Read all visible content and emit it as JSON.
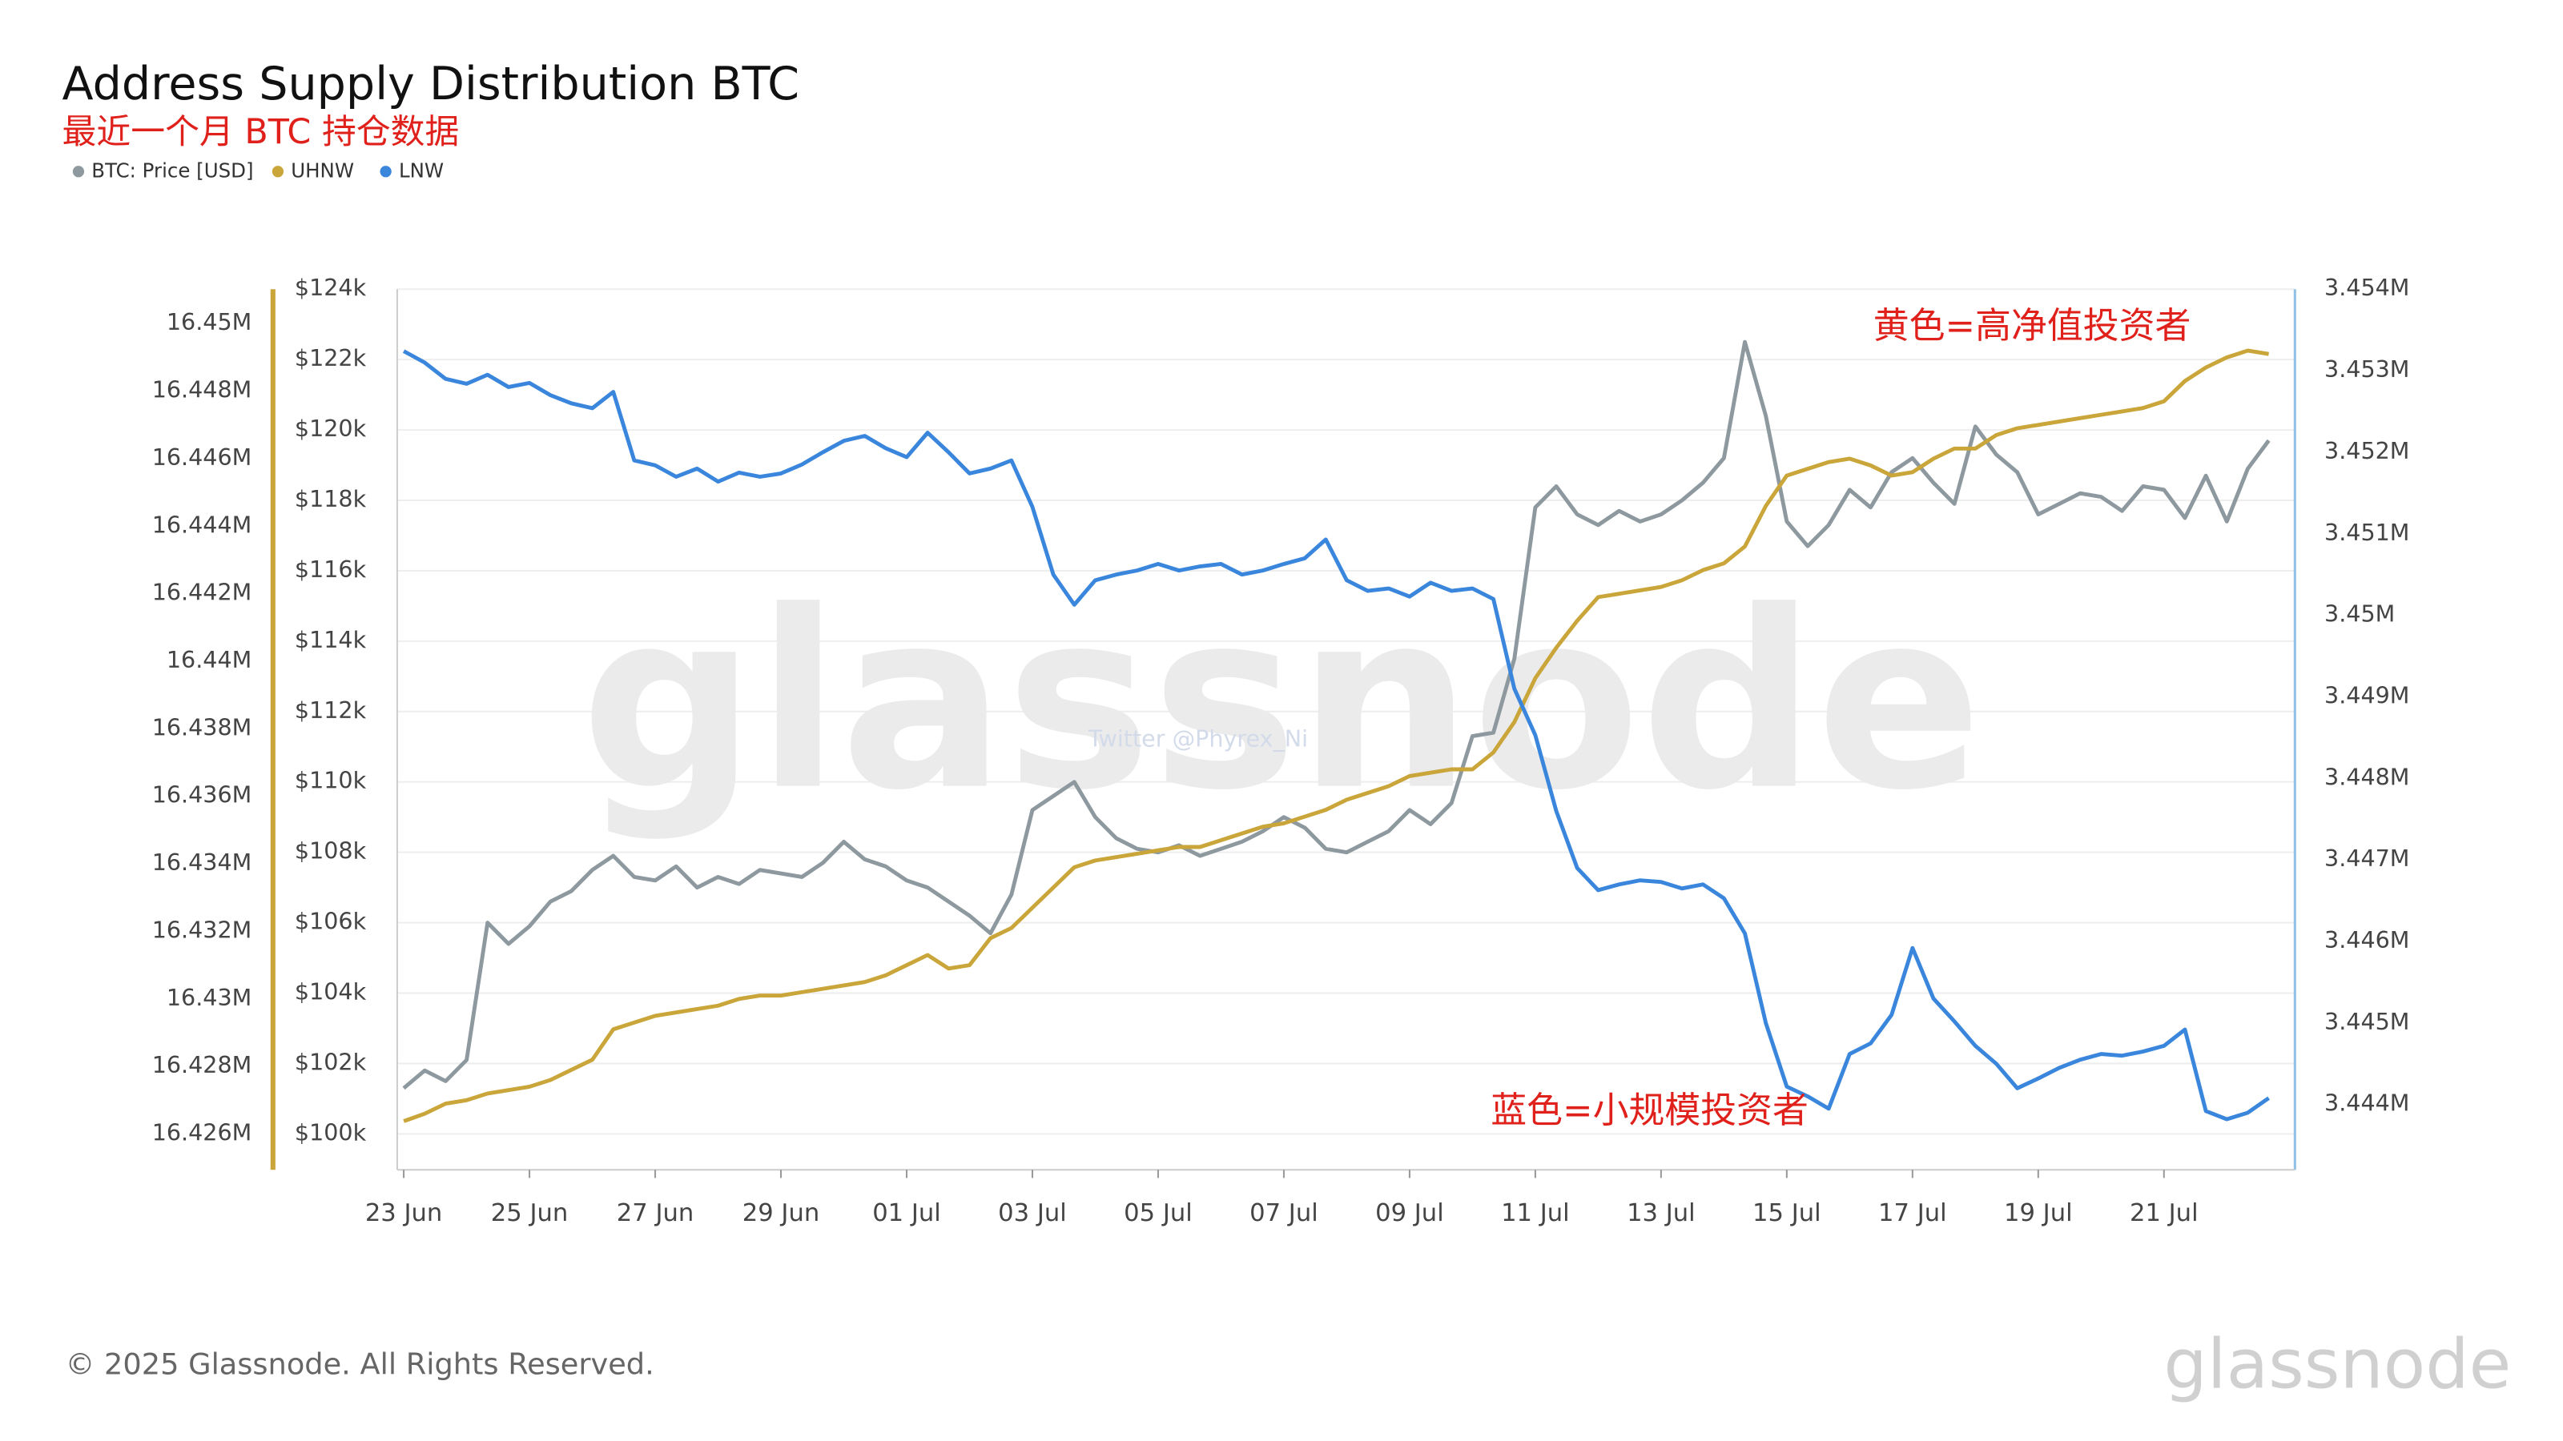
{
  "chart_data": {
    "type": "line",
    "title": "Address Supply Distribution BTC",
    "subtitle": "最近一个月 BTC 持仓数据",
    "watermark": "glassnode",
    "credit": "Twitter @Phyrex_Ni",
    "footer": "© 2025 Glassnode. All Rights Reserved.",
    "logo": "glassnode",
    "annotations": [
      {
        "text": "黄色=高净值投资者"
      },
      {
        "text": "蓝色=小规模投资者"
      }
    ],
    "grid": true,
    "categories": [
      "23 Jun",
      null,
      null,
      null,
      null,
      null,
      "25 Jun",
      null,
      null,
      null,
      null,
      null,
      "27 Jun",
      null,
      null,
      null,
      null,
      null,
      "29 Jun",
      null,
      null,
      null,
      null,
      null,
      "01 Jul",
      null,
      null,
      null,
      null,
      null,
      "03 Jul",
      null,
      null,
      null,
      null,
      null,
      "05 Jul",
      null,
      null,
      null,
      null,
      null,
      "07 Jul",
      null,
      null,
      null,
      null,
      null,
      "09 Jul",
      null,
      null,
      null,
      null,
      null,
      "11 Jul",
      null,
      null,
      null,
      null,
      null,
      "13 Jul",
      null,
      null,
      null,
      null,
      null,
      "15 Jul",
      null,
      null,
      null,
      null,
      null,
      "17 Jul",
      null,
      null,
      null,
      null,
      null,
      "19 Jul",
      null,
      null,
      null,
      null,
      null,
      "21 Jul",
      null,
      null,
      null,
      null,
      null
    ],
    "ylim": [
      16424940,
      16451020
    ],
    "yticks": [
      {
        "value": 16426000,
        "label": "16.426M"
      },
      {
        "value": 16428000,
        "label": "16.428M"
      },
      {
        "value": 16430000,
        "label": "16.43M"
      },
      {
        "value": 16432000,
        "label": "16.432M"
      },
      {
        "value": 16434000,
        "label": "16.434M"
      },
      {
        "value": 16436000,
        "label": "16.436M"
      },
      {
        "value": 16438000,
        "label": "16.438M"
      },
      {
        "value": 16440000,
        "label": "16.44M"
      },
      {
        "value": 16442000,
        "label": "16.442M"
      },
      {
        "value": 16444000,
        "label": "16.444M"
      },
      {
        "value": 16446000,
        "label": "16.446M"
      },
      {
        "value": 16448000,
        "label": "16.448M"
      },
      {
        "value": 16450000,
        "label": "16.45M"
      }
    ],
    "y3lim": [
      98980,
      124000
    ],
    "y3ticks": [
      {
        "value": 100000,
        "label": "$100k"
      },
      {
        "value": 102000,
        "label": "$102k"
      },
      {
        "value": 104000,
        "label": "$104k"
      },
      {
        "value": 106000,
        "label": "$106k"
      },
      {
        "value": 108000,
        "label": "$108k"
      },
      {
        "value": 110000,
        "label": "$110k"
      },
      {
        "value": 112000,
        "label": "$112k"
      },
      {
        "value": 114000,
        "label": "$114k"
      },
      {
        "value": 116000,
        "label": "$116k"
      },
      {
        "value": 118000,
        "label": "$118k"
      },
      {
        "value": 120000,
        "label": "$120k"
      },
      {
        "value": 122000,
        "label": "$122k"
      },
      {
        "value": 124000,
        "label": "$124k"
      }
    ],
    "y2lim": [
      3443200,
      3454000
    ],
    "y2ticks": [
      {
        "value": 3444000,
        "label": "3.444M"
      },
      {
        "value": 3445000,
        "label": "3.445M"
      },
      {
        "value": 3446000,
        "label": "3.446M"
      },
      {
        "value": 3447000,
        "label": "3.447M"
      },
      {
        "value": 3448000,
        "label": "3.448M"
      },
      {
        "value": 3449000,
        "label": "3.449M"
      },
      {
        "value": 3450000,
        "label": "3.45M"
      },
      {
        "value": 3451000,
        "label": "3.451M"
      },
      {
        "value": 3452000,
        "label": "3.452M"
      },
      {
        "value": 3453000,
        "label": "3.453M"
      },
      {
        "value": 3454000,
        "label": "3.454M"
      }
    ],
    "series": [
      {
        "name": "BTC: Price [USD]",
        "color": "#8d999f",
        "axis": "y3",
        "values": [
          101300,
          101800,
          101500,
          102100,
          106000,
          105400,
          105900,
          106600,
          106900,
          107500,
          107900,
          107300,
          107200,
          107600,
          107000,
          107300,
          107100,
          107500,
          107400,
          107300,
          107700,
          108300,
          107800,
          107600,
          107200,
          107000,
          106600,
          106200,
          105700,
          106800,
          109200,
          109600,
          110000,
          109000,
          108400,
          108100,
          108000,
          108200,
          107900,
          108100,
          108300,
          108600,
          109000,
          108700,
          108100,
          108000,
          108300,
          108600,
          109200,
          108800,
          109400,
          111300,
          111400,
          113500,
          117800,
          118400,
          117600,
          117300,
          117700,
          117400,
          117600,
          118000,
          118500,
          119200,
          122500,
          120400,
          117400,
          116700,
          117300,
          118300,
          117800,
          118800,
          119200,
          118500,
          117900,
          120100,
          119300,
          118800,
          117600,
          117900,
          118200,
          118100,
          117700,
          118400,
          118300,
          117500,
          118700,
          117400,
          118900,
          119700
        ]
      },
      {
        "name": "UHNW",
        "color": "#c9a53a",
        "axis": "y",
        "values": [
          16426380,
          16426600,
          16426900,
          16427000,
          16427200,
          16427300,
          16427400,
          16427600,
          16427900,
          16428200,
          16429100,
          16429300,
          16429500,
          16429600,
          16429700,
          16429800,
          16430000,
          16430100,
          16430100,
          16430200,
          16430300,
          16430400,
          16430500,
          16430700,
          16431000,
          16431300,
          16430900,
          16431000,
          16431800,
          16432100,
          16432700,
          16433300,
          16433900,
          16434100,
          16434200,
          16434300,
          16434400,
          16434500,
          16434500,
          16434700,
          16434900,
          16435100,
          16435200,
          16435400,
          16435600,
          16435900,
          16436100,
          16436300,
          16436600,
          16436700,
          16436800,
          16436800,
          16437300,
          16438200,
          16439500,
          16440400,
          16441200,
          16441900,
          16442000,
          16442100,
          16442200,
          16442400,
          16442700,
          16442900,
          16443400,
          16444600,
          16445500,
          16445700,
          16445900,
          16446000,
          16445800,
          16445500,
          16445600,
          16446000,
          16446300,
          16446300,
          16446700,
          16446900,
          16447000,
          16447100,
          16447200,
          16447300,
          16447400,
          16447500,
          16447700,
          16448300,
          16448700,
          16449000,
          16449200,
          16449100
        ]
      },
      {
        "name": "LNW",
        "color": "#3a86dc",
        "axis": "y2",
        "values": [
          3453240,
          3453100,
          3452900,
          3452840,
          3452950,
          3452800,
          3452850,
          3452700,
          3452600,
          3452540,
          3452740,
          3451900,
          3451840,
          3451700,
          3451800,
          3451640,
          3451750,
          3451700,
          3451740,
          3451850,
          3452000,
          3452140,
          3452200,
          3452050,
          3451940,
          3452240,
          3452000,
          3451740,
          3451800,
          3451900,
          3451330,
          3450500,
          3450130,
          3450430,
          3450500,
          3450550,
          3450630,
          3450550,
          3450600,
          3450630,
          3450500,
          3450550,
          3450630,
          3450700,
          3450930,
          3450430,
          3450300,
          3450330,
          3450230,
          3450400,
          3450300,
          3450330,
          3450200,
          3449100,
          3448530,
          3447600,
          3446900,
          3446630,
          3446700,
          3446750,
          3446730,
          3446650,
          3446700,
          3446530,
          3446100,
          3445000,
          3444220,
          3444100,
          3443950,
          3444620,
          3444750,
          3445100,
          3445920,
          3445300,
          3445020,
          3444720,
          3444500,
          3444200,
          3444320,
          3444450,
          3444550,
          3444620,
          3444600,
          3444650,
          3444720,
          3444920,
          3443920,
          3443820,
          3443900,
          3444080
        ]
      }
    ]
  }
}
